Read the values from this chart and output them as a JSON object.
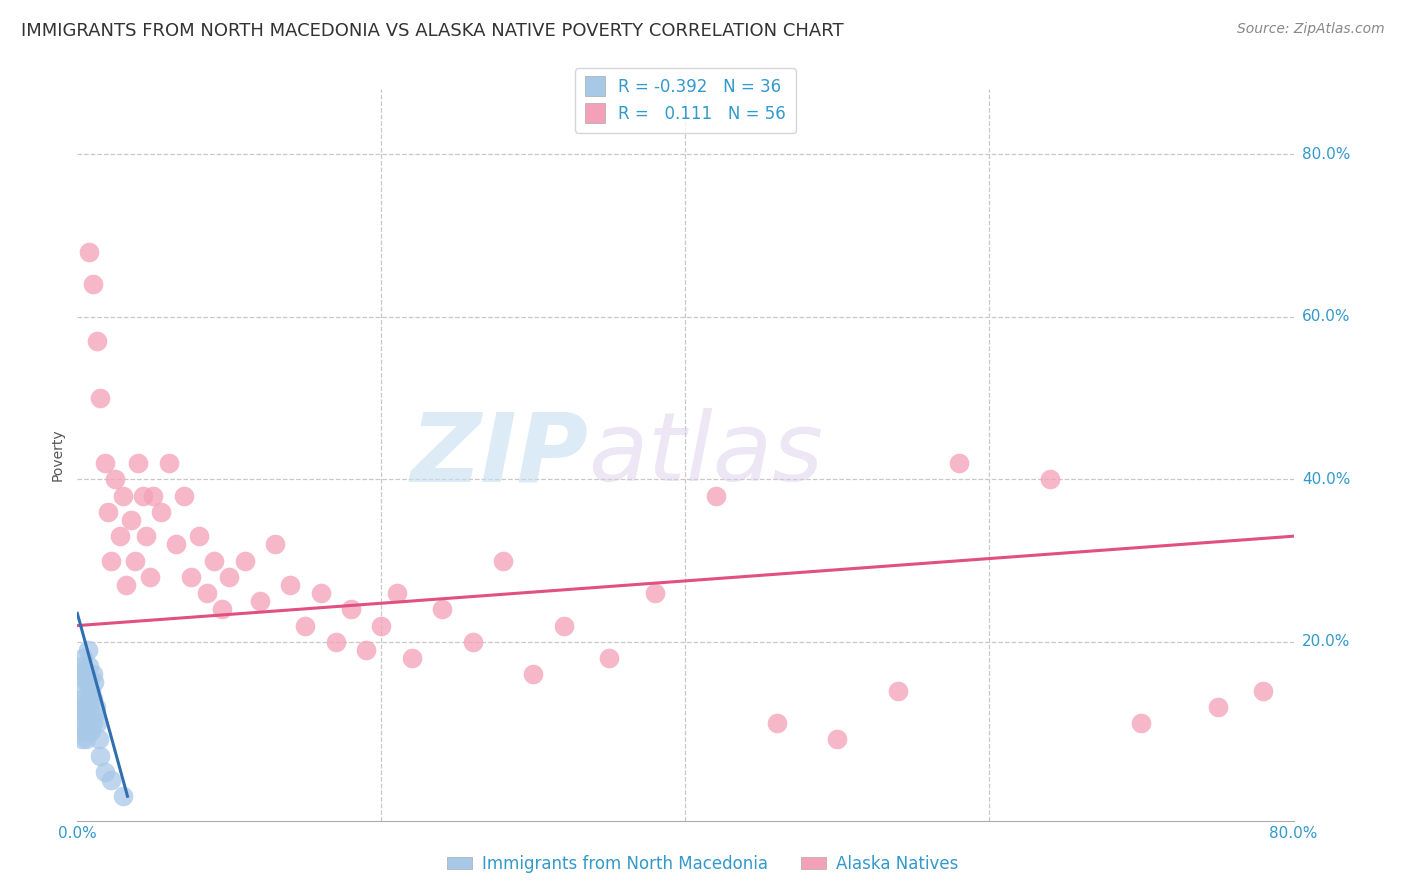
{
  "title": "IMMIGRANTS FROM NORTH MACEDONIA VS ALASKA NATIVE POVERTY CORRELATION CHART",
  "source": "Source: ZipAtlas.com",
  "ylabel": "Poverty",
  "ytick_labels": [
    "20.0%",
    "40.0%",
    "60.0%",
    "80.0%"
  ],
  "ytick_values": [
    0.2,
    0.4,
    0.6,
    0.8
  ],
  "xlim": [
    0.0,
    0.8
  ],
  "ylim": [
    -0.02,
    0.88
  ],
  "blue_R": -0.392,
  "blue_N": 36,
  "pink_R": 0.111,
  "pink_N": 56,
  "blue_color": "#a8c8e8",
  "pink_color": "#f4a0b8",
  "blue_line_color": "#3070b0",
  "pink_line_color": "#e05080",
  "watermark_zip": "ZIP",
  "watermark_atlas": "atlas",
  "blue_points_x": [
    0.001,
    0.002,
    0.002,
    0.003,
    0.003,
    0.003,
    0.004,
    0.004,
    0.004,
    0.005,
    0.005,
    0.005,
    0.006,
    0.006,
    0.006,
    0.007,
    0.007,
    0.007,
    0.007,
    0.008,
    0.008,
    0.008,
    0.009,
    0.009,
    0.01,
    0.01,
    0.01,
    0.011,
    0.011,
    0.012,
    0.013,
    0.014,
    0.015,
    0.018,
    0.022,
    0.03
  ],
  "blue_points_y": [
    0.1,
    0.12,
    0.16,
    0.08,
    0.13,
    0.17,
    0.1,
    0.14,
    0.18,
    0.09,
    0.12,
    0.16,
    0.08,
    0.11,
    0.15,
    0.09,
    0.12,
    0.15,
    0.19,
    0.1,
    0.13,
    0.17,
    0.09,
    0.14,
    0.1,
    0.13,
    0.16,
    0.11,
    0.15,
    0.12,
    0.1,
    0.08,
    0.06,
    0.04,
    0.03,
    0.01
  ],
  "pink_points_x": [
    0.008,
    0.01,
    0.013,
    0.015,
    0.018,
    0.02,
    0.022,
    0.025,
    0.028,
    0.03,
    0.032,
    0.035,
    0.038,
    0.04,
    0.043,
    0.045,
    0.048,
    0.05,
    0.055,
    0.06,
    0.065,
    0.07,
    0.075,
    0.08,
    0.085,
    0.09,
    0.095,
    0.1,
    0.11,
    0.12,
    0.13,
    0.14,
    0.15,
    0.16,
    0.17,
    0.18,
    0.19,
    0.2,
    0.21,
    0.22,
    0.24,
    0.26,
    0.28,
    0.3,
    0.32,
    0.35,
    0.38,
    0.42,
    0.46,
    0.5,
    0.54,
    0.58,
    0.64,
    0.7,
    0.75,
    0.78
  ],
  "pink_points_y": [
    0.68,
    0.64,
    0.57,
    0.5,
    0.42,
    0.36,
    0.3,
    0.4,
    0.33,
    0.38,
    0.27,
    0.35,
    0.3,
    0.42,
    0.38,
    0.33,
    0.28,
    0.38,
    0.36,
    0.42,
    0.32,
    0.38,
    0.28,
    0.33,
    0.26,
    0.3,
    0.24,
    0.28,
    0.3,
    0.25,
    0.32,
    0.27,
    0.22,
    0.26,
    0.2,
    0.24,
    0.19,
    0.22,
    0.26,
    0.18,
    0.24,
    0.2,
    0.3,
    0.16,
    0.22,
    0.18,
    0.26,
    0.38,
    0.1,
    0.08,
    0.14,
    0.42,
    0.4,
    0.1,
    0.12,
    0.14
  ],
  "pink_line_start_x": 0.0,
  "pink_line_start_y": 0.22,
  "pink_line_end_x": 0.8,
  "pink_line_end_y": 0.33,
  "blue_line_start_x": 0.0,
  "blue_line_start_y": 0.235,
  "blue_line_end_x": 0.033,
  "blue_line_end_y": 0.01,
  "grid_color": "#c8c8c8",
  "background_color": "#ffffff",
  "title_fontsize": 13,
  "axis_label_fontsize": 10,
  "tick_fontsize": 11,
  "legend_fontsize": 12,
  "source_fontsize": 10
}
